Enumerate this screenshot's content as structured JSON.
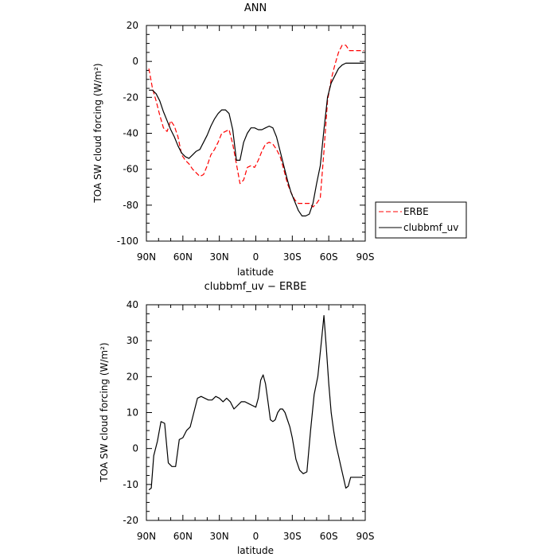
{
  "chart_data": [
    {
      "type": "line",
      "title": "ANN",
      "xlabel": "latitude",
      "ylabel": "TOA SW cloud forcing (W/m²)",
      "ylim": [
        -100,
        20
      ],
      "yticks": [
        -100,
        -80,
        -60,
        -40,
        -20,
        0,
        20
      ],
      "xlim": [
        90,
        -90
      ],
      "xticks": [
        {
          "value": 90,
          "label": "90N"
        },
        {
          "value": 60,
          "label": "60N"
        },
        {
          "value": 30,
          "label": "30N"
        },
        {
          "value": 0,
          "label": "0"
        },
        {
          "value": -30,
          "label": "30S"
        },
        {
          "value": -60,
          "label": "60S"
        },
        {
          "value": -90,
          "label": "90S"
        }
      ],
      "legend": "right",
      "series": [
        {
          "name": "ERBE",
          "color": "#ff0000",
          "dash": true,
          "x": [
            88,
            85,
            82,
            79,
            76,
            73,
            70,
            67,
            64,
            61,
            58,
            55,
            52,
            49,
            46,
            43,
            40,
            37,
            34,
            31,
            28,
            25,
            22,
            19,
            16,
            13,
            10,
            7,
            4,
            1,
            -2,
            -5,
            -8,
            -11,
            -14,
            -17,
            -20,
            -23,
            -26,
            -29,
            -32,
            -35,
            -38,
            -41,
            -44,
            -47,
            -50,
            -53,
            -56,
            -59,
            -62,
            -65,
            -68,
            -71,
            -74,
            -77,
            -80,
            -83,
            -86,
            -89
          ],
          "y": [
            -4,
            -15,
            -22,
            -30,
            -37,
            -39,
            -33,
            -36,
            -42,
            -52,
            -55,
            -57,
            -60,
            -62,
            -64,
            -63,
            -58,
            -52,
            -49,
            -45,
            -40,
            -39,
            -38,
            -46,
            -57,
            -68,
            -66,
            -59,
            -58,
            -59,
            -55,
            -50,
            -46,
            -45,
            -46,
            -49,
            -53,
            -60,
            -68,
            -73,
            -77,
            -79,
            -79,
            -79,
            -79,
            -81,
            -79,
            -76,
            -50,
            -22,
            -10,
            -2,
            5,
            9,
            9,
            6,
            6,
            6,
            6,
            6
          ]
        },
        {
          "name": "clubbmf_uv",
          "color": "#000000",
          "dash": false,
          "x": [
            88,
            85,
            82,
            79,
            76,
            73,
            70,
            67,
            64,
            61,
            58,
            55,
            52,
            49,
            46,
            43,
            40,
            37,
            34,
            31,
            28,
            25,
            22,
            19,
            16,
            13,
            10,
            7,
            4,
            1,
            -2,
            -5,
            -8,
            -11,
            -14,
            -17,
            -20,
            -23,
            -26,
            -29,
            -32,
            -35,
            -38,
            -41,
            -44,
            -47,
            -50,
            -53,
            -56,
            -59,
            -62,
            -65,
            -68,
            -71,
            -74,
            -77,
            -80,
            -83,
            -86,
            -89
          ],
          "y": [
            -16,
            -16,
            -18,
            -22,
            -28,
            -33,
            -38,
            -42,
            -47,
            -51,
            -53,
            -54,
            -52,
            -50,
            -49,
            -45,
            -41,
            -36,
            -32,
            -29,
            -27,
            -27,
            -29,
            -38,
            -55,
            -55,
            -45,
            -40,
            -37,
            -37,
            -38,
            -38,
            -37,
            -36,
            -37,
            -42,
            -50,
            -58,
            -66,
            -73,
            -78,
            -83,
            -86,
            -86,
            -85,
            -79,
            -68,
            -58,
            -38,
            -20,
            -12,
            -8,
            -4,
            -2,
            -1,
            -1,
            -1,
            -1,
            -1,
            -1
          ]
        }
      ]
    },
    {
      "type": "line",
      "title": "clubbmf_uv − ERBE",
      "xlabel": "latitude",
      "ylabel": "TOA SW cloud forcing (W/m²)",
      "ylim": [
        -20,
        40
      ],
      "yticks": [
        -20,
        -10,
        0,
        10,
        20,
        30,
        40
      ],
      "xlim": [
        90,
        -90
      ],
      "xticks": [
        {
          "value": 90,
          "label": "90N"
        },
        {
          "value": 60,
          "label": "60N"
        },
        {
          "value": 30,
          "label": "30N"
        },
        {
          "value": 0,
          "label": "0"
        },
        {
          "value": -30,
          "label": "30S"
        },
        {
          "value": -60,
          "label": "60S"
        },
        {
          "value": -90,
          "label": "90S"
        }
      ],
      "series": [
        {
          "color": "#000000",
          "dash": false,
          "x": [
            88,
            86,
            84,
            81,
            78,
            75,
            72,
            69,
            66,
            63,
            60,
            57,
            54,
            51,
            48,
            45,
            42,
            39,
            36,
            33,
            30,
            27,
            24,
            21,
            18,
            15,
            12,
            9,
            6,
            3,
            0,
            -2,
            -4,
            -6,
            -8,
            -10,
            -12,
            -14,
            -16,
            -18,
            -20,
            -22,
            -24,
            -26,
            -28,
            -30,
            -33,
            -36,
            -39,
            -42,
            -45,
            -48,
            -51,
            -54,
            -56,
            -58,
            -60,
            -62,
            -64,
            -66,
            -68,
            -70,
            -72,
            -74,
            -76,
            -78,
            -80,
            -82,
            -84,
            -86,
            -88
          ],
          "y": [
            -11.5,
            -11,
            -2,
            2,
            7.5,
            7,
            -4,
            -5,
            -5,
            2.5,
            3,
            5,
            6,
            10,
            14,
            14.5,
            14,
            13.5,
            13.5,
            14.5,
            14,
            13,
            14,
            13,
            11,
            12,
            13,
            13,
            12.5,
            12,
            11.5,
            14,
            19,
            20.5,
            18,
            13,
            8,
            7.5,
            8,
            10,
            11,
            11,
            10,
            8,
            6,
            3,
            -3,
            -6,
            -7,
            -6.5,
            5,
            15,
            20,
            30,
            37,
            28,
            18,
            10,
            5,
            1,
            -2,
            -5,
            -8,
            -11,
            -10.5,
            -8,
            -8,
            -8,
            -8,
            -8,
            -8
          ]
        }
      ]
    }
  ]
}
